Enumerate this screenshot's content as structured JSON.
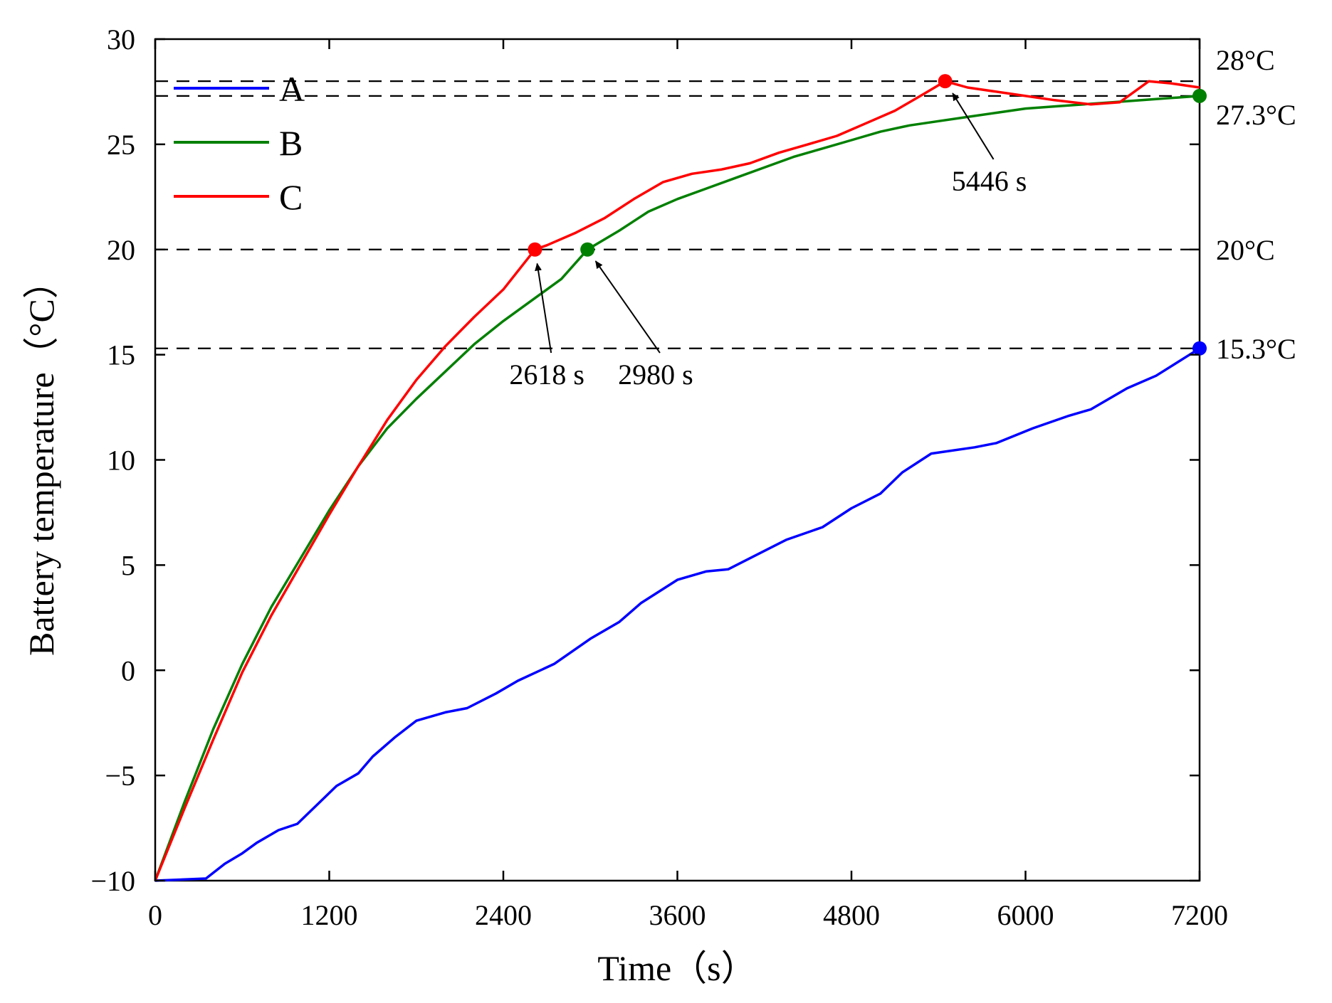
{
  "chart_data": {
    "type": "line",
    "title": "",
    "xlabel": "Time（s）",
    "ylabel": "Battery temperature（°C）",
    "xlim": [
      0,
      7200
    ],
    "ylim": [
      -10,
      30
    ],
    "xticks": [
      0,
      1200,
      2400,
      3600,
      4800,
      6000,
      7200
    ],
    "yticks": [
      -10,
      -5,
      0,
      5,
      10,
      15,
      20,
      25,
      30
    ],
    "grid": false,
    "legend_position": "top-left",
    "series": [
      {
        "name": "A",
        "color": "#0000ff",
        "points": [
          [
            0,
            -10
          ],
          [
            350,
            -9.9
          ],
          [
            480,
            -9.2
          ],
          [
            600,
            -8.7
          ],
          [
            700,
            -8.2
          ],
          [
            850,
            -7.6
          ],
          [
            980,
            -7.3
          ],
          [
            1100,
            -6.5
          ],
          [
            1250,
            -5.5
          ],
          [
            1400,
            -4.9
          ],
          [
            1500,
            -4.1
          ],
          [
            1650,
            -3.2
          ],
          [
            1800,
            -2.4
          ],
          [
            2000,
            -2.0
          ],
          [
            2150,
            -1.8
          ],
          [
            2350,
            -1.1
          ],
          [
            2500,
            -0.5
          ],
          [
            2750,
            0.3
          ],
          [
            3000,
            1.5
          ],
          [
            3200,
            2.3
          ],
          [
            3350,
            3.2
          ],
          [
            3600,
            4.3
          ],
          [
            3800,
            4.7
          ],
          [
            3950,
            4.8
          ],
          [
            4150,
            5.5
          ],
          [
            4350,
            6.2
          ],
          [
            4600,
            6.8
          ],
          [
            4800,
            7.7
          ],
          [
            5000,
            8.4
          ],
          [
            5150,
            9.4
          ],
          [
            5350,
            10.3
          ],
          [
            5650,
            10.6
          ],
          [
            5800,
            10.8
          ],
          [
            6050,
            11.5
          ],
          [
            6300,
            12.1
          ],
          [
            6450,
            12.4
          ],
          [
            6700,
            13.4
          ],
          [
            6900,
            14.0
          ],
          [
            7200,
            15.3
          ]
        ]
      },
      {
        "name": "B",
        "color": "#008000",
        "points": [
          [
            0,
            -10
          ],
          [
            200,
            -6.3
          ],
          [
            400,
            -2.8
          ],
          [
            600,
            0.3
          ],
          [
            800,
            3.0
          ],
          [
            1000,
            5.3
          ],
          [
            1200,
            7.6
          ],
          [
            1400,
            9.7
          ],
          [
            1600,
            11.5
          ],
          [
            1800,
            12.9
          ],
          [
            2000,
            14.2
          ],
          [
            2200,
            15.5
          ],
          [
            2400,
            16.6
          ],
          [
            2600,
            17.6
          ],
          [
            2800,
            18.6
          ],
          [
            2980,
            20
          ],
          [
            3200,
            20.9
          ],
          [
            3400,
            21.8
          ],
          [
            3600,
            22.4
          ],
          [
            3800,
            22.9
          ],
          [
            4000,
            23.4
          ],
          [
            4200,
            23.9
          ],
          [
            4400,
            24.4
          ],
          [
            4600,
            24.8
          ],
          [
            4800,
            25.2
          ],
          [
            5000,
            25.6
          ],
          [
            5200,
            25.9
          ],
          [
            5400,
            26.1
          ],
          [
            5600,
            26.3
          ],
          [
            5800,
            26.5
          ],
          [
            6000,
            26.7
          ],
          [
            6200,
            26.8
          ],
          [
            6400,
            26.9
          ],
          [
            6600,
            27.0
          ],
          [
            6800,
            27.1
          ],
          [
            7000,
            27.2
          ],
          [
            7200,
            27.3
          ]
        ]
      },
      {
        "name": "C",
        "color": "#ff0000",
        "points": [
          [
            0,
            -10
          ],
          [
            200,
            -6.6
          ],
          [
            400,
            -3.3
          ],
          [
            600,
            -0.1
          ],
          [
            800,
            2.6
          ],
          [
            1000,
            5.0
          ],
          [
            1200,
            7.4
          ],
          [
            1400,
            9.7
          ],
          [
            1600,
            11.9
          ],
          [
            1800,
            13.8
          ],
          [
            2000,
            15.4
          ],
          [
            2200,
            16.8
          ],
          [
            2400,
            18.1
          ],
          [
            2618,
            20
          ],
          [
            2700,
            20.2
          ],
          [
            2900,
            20.8
          ],
          [
            3100,
            21.5
          ],
          [
            3300,
            22.4
          ],
          [
            3500,
            23.2
          ],
          [
            3700,
            23.6
          ],
          [
            3900,
            23.8
          ],
          [
            4100,
            24.1
          ],
          [
            4300,
            24.6
          ],
          [
            4500,
            25.0
          ],
          [
            4700,
            25.4
          ],
          [
            4900,
            26.0
          ],
          [
            5100,
            26.6
          ],
          [
            5300,
            27.4
          ],
          [
            5446,
            28.0
          ],
          [
            5600,
            27.7
          ],
          [
            5900,
            27.4
          ],
          [
            6200,
            27.1
          ],
          [
            6450,
            26.9
          ],
          [
            6650,
            27.0
          ],
          [
            6850,
            28.0
          ],
          [
            7000,
            27.9
          ],
          [
            7200,
            27.7
          ]
        ]
      }
    ],
    "reference_lines": [
      {
        "y": 28,
        "label": "28°C"
      },
      {
        "y": 27.3,
        "label": "27.3°C"
      },
      {
        "y": 20,
        "label": "20°C"
      },
      {
        "y": 15.3,
        "label": "15.3°C"
      }
    ],
    "markers": [
      {
        "series": "C",
        "x": 2618,
        "y": 20,
        "color": "#ff0000"
      },
      {
        "series": "B",
        "x": 2980,
        "y": 20,
        "color": "#008000"
      },
      {
        "series": "C",
        "x": 5446,
        "y": 28,
        "color": "#ff0000"
      },
      {
        "series": "B",
        "x": 7200,
        "y": 27.3,
        "color": "#008000"
      },
      {
        "series": "A",
        "x": 7200,
        "y": 15.3,
        "color": "#0000ff"
      }
    ],
    "annotations": [
      {
        "text": "2618 s",
        "x": 2618,
        "y": 20,
        "label_x": 2700,
        "label_y": 13.6
      },
      {
        "text": "2980 s",
        "x": 2980,
        "y": 20,
        "label_x": 3450,
        "label_y": 13.6
      },
      {
        "text": "5446 s",
        "x": 5446,
        "y": 28,
        "label_x": 5750,
        "label_y": 22.8
      }
    ]
  }
}
